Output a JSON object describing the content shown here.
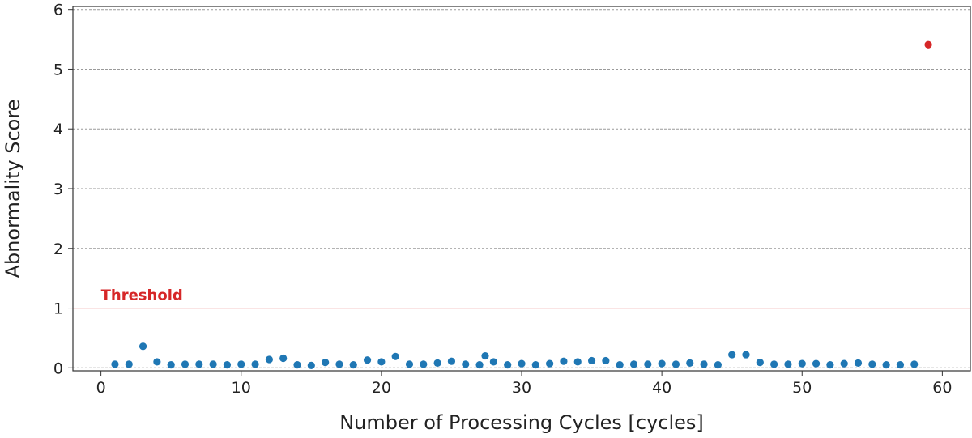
{
  "chart_data": {
    "type": "scatter",
    "xlabel": "Number of Processing Cycles [cycles]",
    "ylabel": "Abnormality Score",
    "xlim": [
      -2,
      62
    ],
    "ylim": [
      -0.05,
      6.05
    ],
    "xticks": [
      0,
      10,
      20,
      30,
      40,
      50,
      60
    ],
    "yticks": [
      0,
      1,
      2,
      3,
      4,
      5,
      6
    ],
    "xtick_labels": [
      "0",
      "10",
      "20",
      "30",
      "40",
      "50",
      "60"
    ],
    "ytick_labels": [
      "0",
      "1",
      "2",
      "3",
      "4",
      "5",
      "6"
    ],
    "grid": "horizontal-dashed",
    "threshold": {
      "label": "Threshold",
      "value": 1,
      "color": "#d62728"
    },
    "normal_color": "#1f77b4",
    "anomaly_color": "#d62728",
    "points": [
      {
        "x": 1,
        "y": 0.06
      },
      {
        "x": 2,
        "y": 0.06
      },
      {
        "x": 3,
        "y": 0.36
      },
      {
        "x": 4,
        "y": 0.1
      },
      {
        "x": 5,
        "y": 0.05
      },
      {
        "x": 6,
        "y": 0.06
      },
      {
        "x": 7,
        "y": 0.06
      },
      {
        "x": 8,
        "y": 0.06
      },
      {
        "x": 9,
        "y": 0.05
      },
      {
        "x": 10,
        "y": 0.06
      },
      {
        "x": 11,
        "y": 0.06
      },
      {
        "x": 12,
        "y": 0.14
      },
      {
        "x": 13,
        "y": 0.16
      },
      {
        "x": 14,
        "y": 0.05
      },
      {
        "x": 15,
        "y": 0.04
      },
      {
        "x": 16,
        "y": 0.09
      },
      {
        "x": 17,
        "y": 0.06
      },
      {
        "x": 18,
        "y": 0.05
      },
      {
        "x": 19,
        "y": 0.13
      },
      {
        "x": 20,
        "y": 0.1
      },
      {
        "x": 21,
        "y": 0.19
      },
      {
        "x": 22,
        "y": 0.06
      },
      {
        "x": 23,
        "y": 0.06
      },
      {
        "x": 24,
        "y": 0.08
      },
      {
        "x": 25,
        "y": 0.11
      },
      {
        "x": 26,
        "y": 0.06
      },
      {
        "x": 27,
        "y": 0.05
      },
      {
        "x": 27.4,
        "y": 0.2
      },
      {
        "x": 28,
        "y": 0.1
      },
      {
        "x": 29,
        "y": 0.05
      },
      {
        "x": 30,
        "y": 0.07
      },
      {
        "x": 31,
        "y": 0.05
      },
      {
        "x": 32,
        "y": 0.07
      },
      {
        "x": 33,
        "y": 0.11
      },
      {
        "x": 34,
        "y": 0.1
      },
      {
        "x": 35,
        "y": 0.12
      },
      {
        "x": 36,
        "y": 0.12
      },
      {
        "x": 37,
        "y": 0.05
      },
      {
        "x": 38,
        "y": 0.06
      },
      {
        "x": 39,
        "y": 0.06
      },
      {
        "x": 40,
        "y": 0.07
      },
      {
        "x": 41,
        "y": 0.06
      },
      {
        "x": 42,
        "y": 0.08
      },
      {
        "x": 43,
        "y": 0.06
      },
      {
        "x": 44,
        "y": 0.05
      },
      {
        "x": 45,
        "y": 0.22
      },
      {
        "x": 46,
        "y": 0.22
      },
      {
        "x": 47,
        "y": 0.09
      },
      {
        "x": 48,
        "y": 0.06
      },
      {
        "x": 49,
        "y": 0.06
      },
      {
        "x": 50,
        "y": 0.07
      },
      {
        "x": 51,
        "y": 0.07
      },
      {
        "x": 52,
        "y": 0.05
      },
      {
        "x": 53,
        "y": 0.07
      },
      {
        "x": 54,
        "y": 0.08
      },
      {
        "x": 55,
        "y": 0.06
      },
      {
        "x": 56,
        "y": 0.05
      },
      {
        "x": 57,
        "y": 0.05
      },
      {
        "x": 58,
        "y": 0.06
      },
      {
        "x": 59,
        "y": 5.41
      }
    ]
  }
}
